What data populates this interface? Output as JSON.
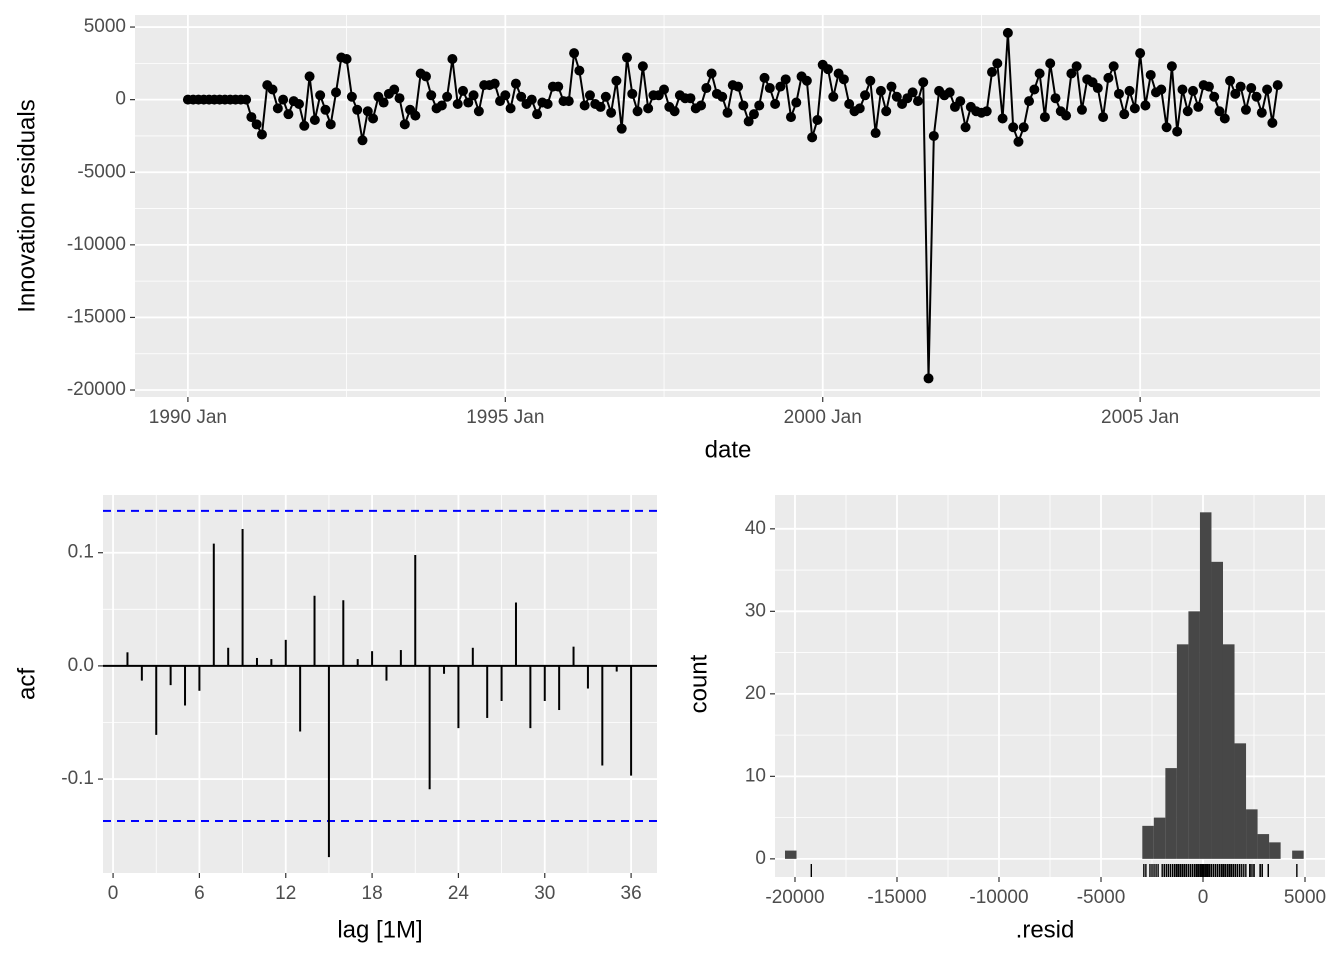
{
  "chart_data": [
    {
      "type": "line",
      "x_label": "date",
      "y_label": "Innovation residuals",
      "color": "#000000",
      "grid": true,
      "xlim": [
        "1989-03",
        "2007-11"
      ],
      "xticks": [
        {
          "value": "1990-01",
          "label": "1990 Jan"
        },
        {
          "value": "1995-01",
          "label": "1995 Jan"
        },
        {
          "value": "2000-01",
          "label": "2000 Jan"
        },
        {
          "value": "2005-01",
          "label": "2005 Jan"
        }
      ],
      "ylim": [
        -20480,
        5830
      ],
      "yticks": [
        -20000,
        -15000,
        -10000,
        -5000,
        0,
        5000
      ],
      "x": [
        "1990-01",
        "1990-02",
        "1990-03",
        "1990-04",
        "1990-05",
        "1990-06",
        "1990-07",
        "1990-08",
        "1990-09",
        "1990-10",
        "1990-11",
        "1990-12",
        "1991-01",
        "1991-02",
        "1991-03",
        "1991-04",
        "1991-05",
        "1991-06",
        "1991-07",
        "1991-08",
        "1991-09",
        "1991-10",
        "1991-11",
        "1991-12",
        "1992-01",
        "1992-02",
        "1992-03",
        "1992-04",
        "1992-05",
        "1992-06",
        "1992-07",
        "1992-08",
        "1992-09",
        "1992-10",
        "1992-11",
        "1992-12",
        "1993-01",
        "1993-02",
        "1993-03",
        "1993-04",
        "1993-05",
        "1993-06",
        "1993-07",
        "1993-08",
        "1993-09",
        "1993-10",
        "1993-11",
        "1993-12",
        "1994-01",
        "1994-02",
        "1994-03",
        "1994-04",
        "1994-05",
        "1994-06",
        "1994-07",
        "1994-08",
        "1994-09",
        "1994-10",
        "1994-11",
        "1994-12",
        "1995-01",
        "1995-02",
        "1995-03",
        "1995-04",
        "1995-05",
        "1995-06",
        "1995-07",
        "1995-08",
        "1995-09",
        "1995-10",
        "1995-11",
        "1995-12",
        "1996-01",
        "1996-02",
        "1996-03",
        "1996-04",
        "1996-05",
        "1996-06",
        "1996-07",
        "1996-08",
        "1996-09",
        "1996-10",
        "1996-11",
        "1996-12",
        "1997-01",
        "1997-02",
        "1997-03",
        "1997-04",
        "1997-05",
        "1997-06",
        "1997-07",
        "1997-08",
        "1997-09",
        "1997-10",
        "1997-11",
        "1997-12",
        "1998-01",
        "1998-02",
        "1998-03",
        "1998-04",
        "1998-05",
        "1998-06",
        "1998-07",
        "1998-08",
        "1998-09",
        "1998-10",
        "1998-11",
        "1998-12",
        "1999-01",
        "1999-02",
        "1999-03",
        "1999-04",
        "1999-05",
        "1999-06",
        "1999-07",
        "1999-08",
        "1999-09",
        "1999-10",
        "1999-11",
        "1999-12",
        "2000-01",
        "2000-02",
        "2000-03",
        "2000-04",
        "2000-05",
        "2000-06",
        "2000-07",
        "2000-08",
        "2000-09",
        "2000-10",
        "2000-11",
        "2000-12",
        "2001-01",
        "2001-02",
        "2001-03",
        "2001-04",
        "2001-05",
        "2001-06",
        "2001-07",
        "2001-08",
        "2001-09",
        "2001-10",
        "2001-11",
        "2001-12",
        "2002-01",
        "2002-02",
        "2002-03",
        "2002-04",
        "2002-05",
        "2002-06",
        "2002-07",
        "2002-08",
        "2002-09",
        "2002-10",
        "2002-11",
        "2002-12",
        "2003-01",
        "2003-02",
        "2003-03",
        "2003-04",
        "2003-05",
        "2003-06",
        "2003-07",
        "2003-08",
        "2003-09",
        "2003-10",
        "2003-11",
        "2003-12",
        "2004-01",
        "2004-02",
        "2004-03",
        "2004-04",
        "2004-05",
        "2004-06",
        "2004-07",
        "2004-08",
        "2004-09",
        "2004-10",
        "2004-11",
        "2004-12",
        "2005-01",
        "2005-02",
        "2005-03",
        "2005-04",
        "2005-05",
        "2005-06",
        "2005-07",
        "2005-08",
        "2005-09",
        "2005-10",
        "2005-11",
        "2005-12",
        "2006-01",
        "2006-02",
        "2006-03",
        "2006-04",
        "2006-05",
        "2006-06",
        "2006-07",
        "2006-08",
        "2006-09",
        "2006-10",
        "2006-11",
        "2006-12",
        "2007-01",
        "2007-02",
        "2007-03"
      ],
      "values": [
        0,
        0,
        0,
        0,
        0,
        0,
        0,
        0,
        0,
        0,
        0,
        0,
        -1200,
        -1700,
        -2400,
        1000,
        700,
        -600,
        0,
        -1000,
        -100,
        -300,
        -1800,
        1600,
        -1400,
        300,
        -700,
        -1700,
        500,
        2900,
        2800,
        200,
        -700,
        -2800,
        -800,
        -1300,
        200,
        -200,
        400,
        700,
        100,
        -1700,
        -700,
        -1100,
        1800,
        1600,
        300,
        -600,
        -400,
        200,
        2800,
        -300,
        600,
        -200,
        300,
        -800,
        1000,
        1000,
        1100,
        -100,
        300,
        -600,
        1100,
        200,
        -300,
        0,
        -1000,
        -200,
        -300,
        900,
        900,
        -100,
        -100,
        3200,
        2000,
        -400,
        300,
        -300,
        -500,
        200,
        -900,
        1300,
        -2000,
        2900,
        400,
        -800,
        2300,
        -600,
        300,
        300,
        700,
        -500,
        -800,
        300,
        100,
        100,
        -600,
        -400,
        800,
        1800,
        400,
        200,
        -900,
        1000,
        900,
        -400,
        -1500,
        -1000,
        -400,
        1500,
        800,
        -300,
        900,
        1400,
        -1200,
        -200,
        1600,
        1300,
        -2600,
        -1400,
        2400,
        2100,
        200,
        1800,
        1400,
        -300,
        -800,
        -600,
        300,
        1300,
        -2300,
        600,
        -800,
        900,
        200,
        -300,
        100,
        500,
        -100,
        1200,
        -19200,
        -2500,
        600,
        300,
        500,
        -500,
        -100,
        -1900,
        -500,
        -800,
        -900,
        -800,
        1900,
        2500,
        -1300,
        4600,
        -1900,
        -2900,
        -1900,
        -100,
        700,
        1800,
        -1200,
        2500,
        100,
        -800,
        -1100,
        1800,
        2300,
        -700,
        1400,
        1200,
        800,
        -1200,
        1500,
        2300,
        400,
        -1000,
        600,
        -600,
        3200,
        -400,
        1700,
        500,
        700,
        -1900,
        2300,
        -2200,
        700,
        -800,
        600,
        -500,
        1000,
        900,
        200,
        -800,
        -1300,
        1300,
        400,
        900,
        -700,
        800,
        200,
        -900,
        700,
        -1600,
        1000
      ]
    },
    {
      "type": "acf",
      "x_label": "lag [1M]",
      "y_label": "acf",
      "color": "#000000",
      "ci": 0.137,
      "ci_color": "#0000ff",
      "grid": true,
      "x": [
        1,
        2,
        3,
        4,
        5,
        6,
        7,
        8,
        9,
        10,
        11,
        12,
        13,
        14,
        15,
        16,
        17,
        18,
        19,
        20,
        21,
        22,
        23,
        24,
        25,
        26,
        27,
        28,
        29,
        30,
        31,
        32,
        33,
        34,
        35,
        36
      ],
      "values": [
        0.012,
        -0.013,
        -0.061,
        -0.017,
        -0.035,
        -0.022,
        0.108,
        0.016,
        0.121,
        0.007,
        0.006,
        0.023,
        -0.058,
        0.062,
        -0.169,
        0.058,
        0.006,
        0.013,
        -0.013,
        0.014,
        0.098,
        -0.109,
        -0.007,
        -0.055,
        0.016,
        -0.046,
        -0.031,
        0.056,
        -0.055,
        -0.031,
        -0.039,
        0.017,
        -0.02,
        -0.088,
        -0.005,
        -0.097
      ],
      "xlim": [
        -0.7,
        37.8
      ],
      "xticks": [
        0,
        6,
        12,
        18,
        24,
        30,
        36
      ],
      "ylim": [
        -0.183,
        0.151
      ],
      "yticks": [
        -0.1,
        {
          "value": 0,
          "label": "0.0"
        },
        0.1
      ]
    },
    {
      "type": "histogram",
      "x_label": ".resid",
      "y_label": "count",
      "color": "#474747",
      "rug": true,
      "grid": true,
      "bins": [
        -20490,
        -19925,
        -19360,
        -18795,
        -18230,
        -17665,
        -17100,
        -16535,
        -15970,
        -15405,
        -14840,
        -14275,
        -13710,
        -13145,
        -12580,
        -12015,
        -11450,
        -10885,
        -10320,
        -9755,
        -9190,
        -8625,
        -8060,
        -7495,
        -6930,
        -6365,
        -5800,
        -5235,
        -4670,
        -4105,
        -3540,
        -2975,
        -2410,
        -1845,
        -1280,
        -715,
        -150,
        415,
        980,
        1545,
        2110,
        2675,
        3240,
        3805,
        4370,
        4935
      ],
      "counts": [
        1,
        0,
        0,
        0,
        0,
        0,
        0,
        0,
        0,
        0,
        0,
        0,
        0,
        0,
        0,
        0,
        0,
        0,
        0,
        0,
        0,
        0,
        0,
        0,
        0,
        0,
        0,
        0,
        0,
        0,
        0,
        4,
        5,
        11,
        26,
        30,
        42,
        36,
        26,
        14,
        6,
        3,
        2,
        0,
        1
      ],
      "xlim": [
        -20980,
        5980
      ],
      "xticks": [
        -20000,
        -15000,
        -10000,
        -5000,
        0,
        5000
      ],
      "ylim": [
        -2.2,
        44.1
      ],
      "yticks": [
        0,
        10,
        20,
        30,
        40
      ]
    }
  ]
}
